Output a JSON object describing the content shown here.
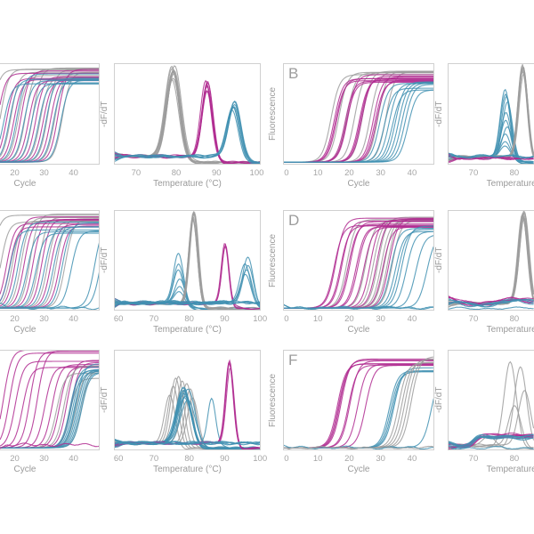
{
  "figure": {
    "description": "qPCR amplification and melt-curve multi-panel figure, cropped at left and right edges",
    "colors": {
      "gray": "#9c9c9c",
      "magenta": "#b02c90",
      "blue": "#4190b2",
      "spine": "#d0d0d0",
      "tick_text": "#a5a5a5",
      "label_text": "#9a9a9a"
    },
    "labels": {
      "cycle": "Cycle",
      "temperature": "Temperature (°C)",
      "fluorescence": "Fluorescence",
      "dfdt": "-dF/dT"
    }
  },
  "chart_data": [
    {
      "panel": "r1c1",
      "type": "line",
      "subtype": "amplification",
      "letter": null,
      "col_slot": "c1",
      "row": 0,
      "xlabel": "Cycle",
      "ylabel": null,
      "xdomain": [
        15,
        48.9
      ],
      "xticks": [
        20,
        30,
        40
      ],
      "ydomain": [
        0,
        1.1
      ],
      "series": [
        {
          "color": "gray",
          "kind": "sigmoid",
          "ct": [
            9,
            12,
            15.5,
            18,
            20.5,
            23,
            25.5,
            28,
            30.5,
            33
          ],
          "plateau": 1.0,
          "plateau_jitter": 0.07
        },
        {
          "color": "magenta",
          "kind": "sigmoid",
          "ct": [
            11,
            14,
            16.5,
            19,
            21.5,
            24,
            26.5,
            29,
            31.5
          ],
          "plateau": 0.97,
          "plateau_jitter": 0.08
        },
        {
          "color": "blue",
          "kind": "sigmoid",
          "ct": [
            13,
            15,
            17.5,
            20,
            22.5,
            25,
            27.5,
            30,
            32.5
          ],
          "plateau": 0.94,
          "plateau_jitter": 0.08
        }
      ]
    },
    {
      "panel": "r1c2",
      "type": "line",
      "subtype": "melt",
      "letter": null,
      "col_slot": "c2",
      "row": 0,
      "xlabel": "Temperature (°C)",
      "ylabel": "-dF/dT",
      "xdomain": [
        64.5,
        101
      ],
      "xticks": [
        70,
        80,
        90,
        100
      ],
      "ydomain": [
        0,
        1.1
      ],
      "baseline": {
        "pre": 0.09,
        "post": 0.02
      },
      "series": [
        {
          "color": "gray",
          "kind": "peak",
          "n": 10,
          "tm": 79.2,
          "tm_jitter": 0.5,
          "h": 0.93,
          "h_jitter": 0.1,
          "sigma": 1.7
        },
        {
          "color": "magenta",
          "kind": "peak",
          "n": 7,
          "tm": 87.6,
          "tm_jitter": 0.3,
          "h": 0.76,
          "h_jitter": 0.07,
          "sigma": 1.3
        },
        {
          "color": "blue",
          "kind": "peak",
          "n": 7,
          "tm": 94.3,
          "tm_jitter": 0.4,
          "h": 0.55,
          "h_jitter": 0.06,
          "sigma": 1.5
        }
      ]
    },
    {
      "panel": "r1c3",
      "type": "line",
      "subtype": "amplification",
      "letter": "B",
      "col_slot": "c3",
      "row": 0,
      "xlabel": "Cycle",
      "ylabel": "Fluorescence",
      "xdomain": [
        -1.1,
        47.1
      ],
      "xticks": [
        0,
        10,
        20,
        30,
        40
      ],
      "ydomain": [
        0,
        1.1
      ],
      "series": [
        {
          "color": "gray",
          "kind": "sigmoid",
          "ct": [
            11,
            13.5,
            16,
            18.5,
            21,
            23.5,
            26,
            28.5
          ],
          "plateau": 1.02,
          "plateau_jitter": 0.05
        },
        {
          "color": "magenta",
          "kind": "sigmoid",
          "ct": [
            12,
            12.4,
            12.8,
            15.5,
            15.9,
            16.3,
            20,
            20.4,
            20.8,
            24.5,
            25,
            25.5
          ],
          "plateau": 0.95,
          "plateau_jitter": 0.06
        },
        {
          "color": "blue",
          "kind": "sigmoid",
          "ct": [
            26.5,
            28,
            29.5,
            30.5,
            31.5,
            32.5,
            33.5,
            34.5,
            35.5
          ],
          "plateau": 0.85,
          "plateau_jitter": 0.05
        }
      ]
    },
    {
      "panel": "r1c4",
      "type": "line",
      "subtype": "melt",
      "letter": null,
      "col_slot": "c4",
      "row": 0,
      "xlabel": "Temperature (°C)",
      "ylabel": "-dF/dT",
      "xdomain": [
        63.7,
        84.8
      ],
      "xticks": [
        70,
        80
      ],
      "ydomain": [
        0,
        1.1
      ],
      "baseline": {
        "pre": 0.08,
        "post": 0.02
      },
      "series": [
        {
          "color": "blue",
          "kind": "peak",
          "tm": 78,
          "tm_jitter": 0.4,
          "sigma": 1.2,
          "h_list": [
            0.74,
            0.7,
            0.68,
            0.6,
            0.5,
            0.42,
            0.33,
            0.25,
            0.17,
            0.12
          ]
        },
        {
          "color": "gray",
          "kind": "peak",
          "n": 7,
          "tm": 82.1,
          "tm_jitter": 0.25,
          "h": 0.97,
          "h_jitter": 0.05,
          "sigma": 1.1
        },
        {
          "color": "magenta",
          "kind": "flat",
          "n": 5,
          "level": 0.07
        },
        {
          "color": "blue",
          "kind": "flat",
          "n": 3,
          "level": 0.09
        }
      ]
    },
    {
      "panel": "r2c1",
      "type": "line",
      "subtype": "amplification",
      "letter": null,
      "col_slot": "c1",
      "row": 1,
      "xlabel": "Cycle",
      "ylabel": null,
      "xdomain": [
        15,
        48.9
      ],
      "xticks": [
        20,
        30,
        40
      ],
      "ydomain": [
        0,
        1.1
      ],
      "series": [
        {
          "color": "gray",
          "kind": "sigmoid",
          "ct": [
            9,
            12,
            16,
            19,
            22,
            25,
            28,
            31,
            34
          ],
          "plateau": 1.0,
          "plateau_jitter": 0.07
        },
        {
          "color": "magenta",
          "kind": "sigmoid",
          "ct": [
            14,
            15,
            17,
            20,
            23,
            26,
            29,
            32
          ],
          "plateau": 0.95,
          "plateau_jitter": 0.09
        },
        {
          "color": "blue",
          "kind": "sigmoid",
          "ct": [
            15,
            18,
            21,
            24,
            27,
            30,
            33,
            36,
            44,
            46
          ],
          "plateau": 0.92,
          "plateau_jitter": 0.08
        },
        {
          "color": "blue",
          "kind": "flat",
          "n": 1,
          "level": 0.03
        }
      ]
    },
    {
      "panel": "r2c2",
      "type": "line",
      "subtype": "melt",
      "letter": null,
      "col_slot": "c2",
      "row": 1,
      "xlabel": "Temperature (°C)",
      "ylabel": "-dF/dT",
      "xdomain": [
        58.7,
        100.2
      ],
      "xticks": [
        60,
        70,
        80,
        90,
        100
      ],
      "ydomain": [
        0,
        1.1
      ],
      "baseline": {
        "pre": 0.08,
        "post": 0.02
      },
      "series": [
        {
          "color": "blue",
          "kind": "peak",
          "tm": 77.2,
          "tm_jitter": 0.3,
          "sigma": 1.4,
          "h_list": [
            0.55,
            0.45,
            0.36,
            0.28,
            0.2,
            0.13
          ]
        },
        {
          "color": "gray",
          "kind": "peak",
          "n": 7,
          "tm": 81.3,
          "tm_jitter": 0.3,
          "h": 0.95,
          "h_jitter": 0.06,
          "sigma": 1.2
        },
        {
          "color": "magenta",
          "kind": "peak",
          "n": 3,
          "tm": 90.1,
          "tm_jitter": 0.15,
          "h": 0.64,
          "h_jitter": 0.04,
          "sigma": 1.0
        },
        {
          "color": "blue",
          "kind": "peak",
          "tm": 96.2,
          "tm_jitter": 0.5,
          "sigma": 1.5,
          "h_list": [
            0.5,
            0.45,
            0.42,
            0.38,
            0.33
          ]
        },
        {
          "color": "blue",
          "kind": "flat",
          "n": 5,
          "level": 0.09
        }
      ]
    },
    {
      "panel": "r2c3",
      "type": "line",
      "subtype": "amplification",
      "letter": "D",
      "col_slot": "c3",
      "row": 1,
      "xlabel": "Cycle",
      "ylabel": "Fluorescence",
      "xdomain": [
        -1.1,
        47.1
      ],
      "xticks": [
        0,
        10,
        20,
        30,
        40
      ],
      "ydomain": [
        0,
        1.1
      ],
      "series": [
        {
          "color": "gray",
          "kind": "sigmoid",
          "ct": [
            16,
            22,
            24.5,
            26,
            27,
            28,
            29,
            30.5
          ],
          "plateau": 1.0,
          "plateau_jitter": 0.05
        },
        {
          "color": "magenta",
          "kind": "sigmoid",
          "ct": [
            12,
            12.5,
            14,
            14.5,
            16.5,
            17,
            19,
            19.5,
            21.5,
            23.5,
            25.5,
            27.5,
            29.5
          ],
          "plateau": 0.97,
          "plateau_jitter": 0.06
        },
        {
          "color": "blue",
          "kind": "sigmoid",
          "ct": [
            30,
            31.5,
            32.5,
            33.5,
            35,
            38,
            41.5
          ],
          "plateau": 0.88,
          "plateau_jitter": 0.05
        },
        {
          "color": "blue",
          "kind": "flat",
          "n": 2,
          "level": 0.03
        }
      ]
    },
    {
      "panel": "r2c4",
      "type": "line",
      "subtype": "melt",
      "letter": null,
      "col_slot": "c4",
      "row": 1,
      "xlabel": "Temperature (°C)",
      "ylabel": "-dF/dT",
      "xdomain": [
        63.7,
        84.8
      ],
      "xticks": [
        70,
        80
      ],
      "ydomain": [
        0,
        1.1
      ],
      "baseline": {
        "pre": 0.08,
        "post": 0.02
      },
      "series": [
        {
          "color": "gray",
          "kind": "peak",
          "n": 8,
          "tm": 82.2,
          "tm_jitter": 0.3,
          "h": 0.97,
          "h_jitter": 0.04,
          "sigma": 1.15
        },
        {
          "color": "magenta",
          "kind": "flat",
          "n": 5,
          "level": 0.1,
          "wavy": true
        },
        {
          "color": "blue",
          "kind": "flat",
          "n": 5,
          "level": 0.085,
          "wavy": true
        },
        {
          "color": "blue",
          "kind": "flat",
          "n": 1,
          "level": 0.025
        }
      ]
    },
    {
      "panel": "r3c1",
      "type": "line",
      "subtype": "amplification",
      "letter": null,
      "col_slot": "c1",
      "row": 2,
      "xlabel": "Cycle",
      "ylabel": null,
      "xdomain": [
        15,
        48.9
      ],
      "xticks": [
        20,
        30,
        40
      ],
      "ydomain": [
        0,
        1.1
      ],
      "series": [
        {
          "color": "magenta",
          "kind": "sigmoid",
          "ct": [
            13,
            15,
            17,
            19.5,
            22,
            24.5,
            27,
            29.5,
            32,
            34.5,
            36
          ],
          "plateau": 1.0,
          "plateau_jitter": 0.1
        },
        {
          "color": "gray",
          "kind": "sigmoid",
          "ct": [
            31,
            33.5,
            35.5,
            37.5,
            39.5
          ],
          "plateau": 0.85,
          "plateau_jitter": 0.08
        },
        {
          "color": "blue",
          "kind": "sigmoid",
          "ct": [
            35.5,
            36,
            36.5,
            37,
            37.5,
            38,
            38.5,
            39,
            39.5
          ],
          "plateau": 0.9,
          "plateau_jitter": 0.05
        },
        {
          "color": "magenta",
          "kind": "flat",
          "n": 1,
          "level": 0.06
        }
      ]
    },
    {
      "panel": "r3c2",
      "type": "line",
      "subtype": "melt",
      "letter": null,
      "col_slot": "c2",
      "row": 2,
      "xlabel": "Temperature (°C)",
      "ylabel": "-dF/dT",
      "xdomain": [
        58.7,
        100.2
      ],
      "xticks": [
        60,
        70,
        80,
        90,
        100
      ],
      "ydomain": [
        0,
        1.1
      ],
      "baseline": {
        "pre": 0.08,
        "post": 0.02
      },
      "series": [
        {
          "color": "gray",
          "kind": "peak",
          "sigma": 1.5,
          "tm_list": [
            74.5,
            75.5,
            76.2,
            77,
            78,
            79.3,
            80.3,
            81
          ],
          "h_list": [
            0.52,
            0.62,
            0.7,
            0.74,
            0.7,
            0.66,
            0.58,
            0.48
          ]
        },
        {
          "color": "blue",
          "kind": "peak",
          "n": 10,
          "tm": 79,
          "tm_jitter": 0.7,
          "h": 0.55,
          "h_jitter": 0.09,
          "sigma": 2.0
        },
        {
          "color": "blue",
          "kind": "peak",
          "n": 1,
          "tm": 86.3,
          "tm_jitter": 0,
          "h": 0.5,
          "h_jitter": 0,
          "sigma": 1.1
        },
        {
          "color": "magenta",
          "kind": "peak",
          "n": 4,
          "tm": 91.4,
          "tm_jitter": 0.2,
          "h": 0.85,
          "h_jitter": 0.05,
          "sigma": 1.1
        },
        {
          "color": "blue",
          "kind": "flat",
          "n": 5,
          "level": 0.08
        }
      ]
    },
    {
      "panel": "r3c3",
      "type": "line",
      "subtype": "amplification",
      "letter": "F",
      "col_slot": "c3",
      "row": 2,
      "xlabel": "Cycle",
      "ylabel": "Fluorescence",
      "xdomain": [
        -1.1,
        47.1
      ],
      "xticks": [
        0,
        10,
        20,
        30,
        40
      ],
      "ydomain": [
        0,
        1.1
      ],
      "series": [
        {
          "color": "magenta",
          "kind": "sigmoid",
          "ct": [
            13,
            13.4,
            13.8,
            14.2,
            16.5,
            17,
            19.5,
            22
          ],
          "plateau": 0.95,
          "plateau_jitter": 0.05
        },
        {
          "color": "blue",
          "kind": "sigmoid",
          "ct": [
            29.5,
            30,
            30.5,
            31,
            43
          ],
          "plateau": 0.9,
          "plateau_jitter": 0.06
        },
        {
          "color": "gray",
          "kind": "sigmoid",
          "ct": [
            32.5,
            33.5,
            34.5,
            35.5,
            36.5
          ],
          "plateau": 1.0,
          "plateau_jitter": 0.05
        },
        {
          "color": "blue",
          "kind": "flat",
          "n": 1,
          "level": 0.03
        },
        {
          "color": "gray",
          "kind": "flat",
          "n": 1,
          "level": 0.03
        }
      ]
    },
    {
      "panel": "r3c4",
      "type": "line",
      "subtype": "melt",
      "letter": null,
      "col_slot": "c4",
      "row": 2,
      "xlabel": "Temperature (°C)",
      "ylabel": "-dF/dT",
      "xdomain": [
        63.7,
        84.8
      ],
      "xticks": [
        70,
        80
      ],
      "ydomain": [
        0,
        1.1
      ],
      "baseline": {
        "pre": 0.05,
        "post": 0.02
      },
      "series": [
        {
          "color": "gray",
          "kind": "peak",
          "sigma": 1.5,
          "tm_list": [
            79,
            81.5,
            82.5,
            80,
            73.5
          ],
          "h_list": [
            0.92,
            0.85,
            0.6,
            0.45,
            0.1
          ]
        },
        {
          "color": "magenta",
          "kind": "step",
          "n": 6,
          "from": 0.05,
          "to": 0.16,
          "at": 70.3
        },
        {
          "color": "blue",
          "kind": "step",
          "n": 6,
          "from": 0.05,
          "to": 0.15,
          "at": 70
        },
        {
          "color": "blue",
          "kind": "flat",
          "n": 1,
          "level": 0.025
        }
      ]
    }
  ]
}
